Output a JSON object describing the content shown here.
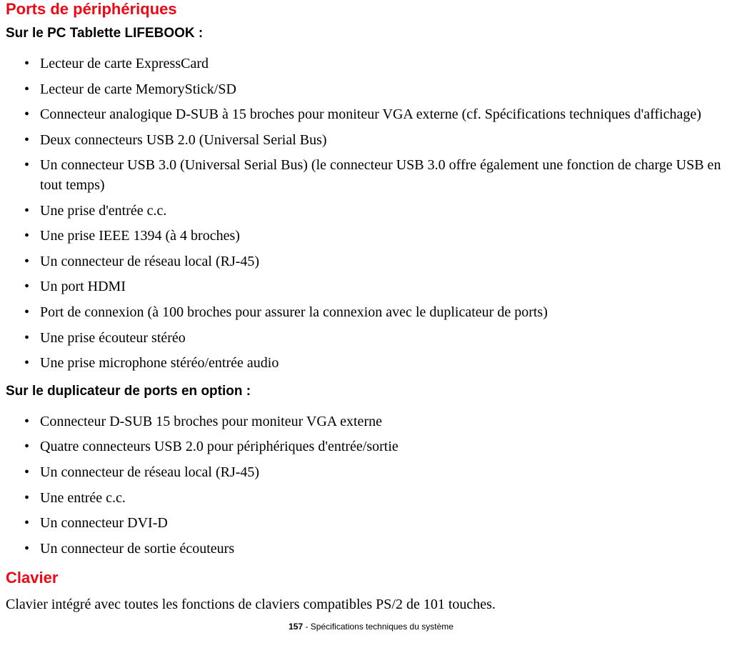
{
  "section1": {
    "title": "Ports de périphériques",
    "sub1": "Sur le PC Tablette LIFEBOOK :",
    "items1": [
      "Lecteur de carte ExpressCard",
      "Lecteur de carte MemoryStick/SD",
      "Connecteur analogique D-SUB à 15 broches pour moniteur VGA externe (cf. Spécifications techniques d'affichage)",
      "Deux connecteurs USB 2.0 (Universal Serial Bus)",
      "Un connecteur USB 3.0 (Universal Serial Bus) (le connecteur USB 3.0 offre également une fonction de charge USB en tout temps)",
      "Une prise d'entrée c.c.",
      "Une prise IEEE 1394 (à 4 broches)",
      "Un connecteur de réseau local (RJ-45)",
      "Un port HDMI",
      "Port de connexion (à 100 broches pour assurer la connexion avec le duplicateur de ports)",
      "Une prise écouteur stéréo",
      "Une prise microphone stéréo/entrée audio"
    ],
    "sub2": "Sur le duplicateur de ports en option :",
    "items2": [
      "Connecteur D-SUB 15 broches pour moniteur VGA externe",
      "Quatre connecteurs USB 2.0 pour périphériques d'entrée/sortie",
      "Un connecteur de réseau local (RJ-45)",
      "Une entrée c.c.",
      "Un connecteur DVI-D",
      "Un connecteur de sortie écouteurs"
    ]
  },
  "section2": {
    "title": "Clavier",
    "body": "Clavier intégré avec toutes les fonctions de claviers compatibles PS/2 de 101 touches."
  },
  "footer": {
    "pagenum": "157",
    "sep": " - ",
    "title": "Spécifications techniques du système"
  }
}
